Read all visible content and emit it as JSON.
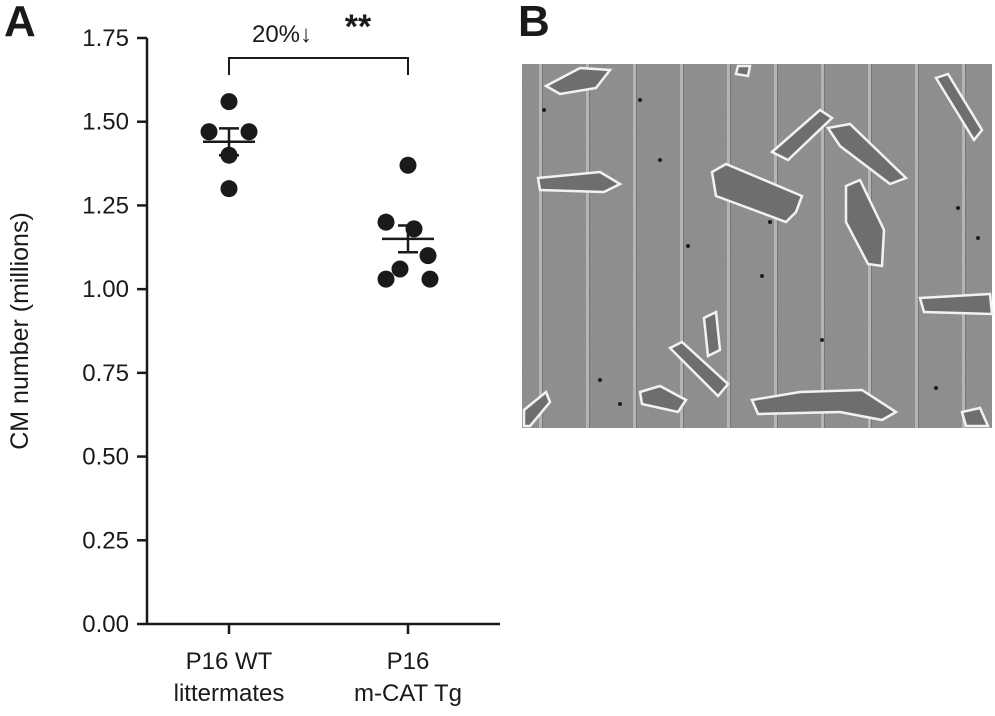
{
  "panels": {
    "a_label": "A",
    "b_label": "B"
  },
  "chart_data": {
    "type": "scatter",
    "ylabel": "CM number (millions)",
    "ylim": [
      0,
      1.75
    ],
    "yticks": [
      0,
      0.25,
      0.5,
      0.75,
      1.0,
      1.25,
      1.5,
      1.75
    ],
    "ytick_labels": [
      "0.00",
      "0.25",
      "0.50",
      "0.75",
      "1.00",
      "1.25",
      "1.50",
      "1.75"
    ],
    "categories": [
      {
        "line1": "P16 WT",
        "line2": "littermates"
      },
      {
        "line1": "P16",
        "line2": "m-CAT Tg"
      }
    ],
    "series": [
      {
        "points": [
          1.56,
          1.47,
          1.47,
          1.4,
          1.3
        ],
        "mean": 1.44,
        "sem": 0.04
      },
      {
        "points": [
          1.37,
          1.2,
          1.18,
          1.1,
          1.06,
          1.03,
          1.03
        ],
        "mean": 1.15,
        "sem": 0.04
      }
    ],
    "annotation": {
      "percent_text": "20%↓",
      "stars": "**"
    },
    "grid": false,
    "legend": "none"
  },
  "micrograph": {
    "icon": "cardiomyocyte-micrograph"
  }
}
